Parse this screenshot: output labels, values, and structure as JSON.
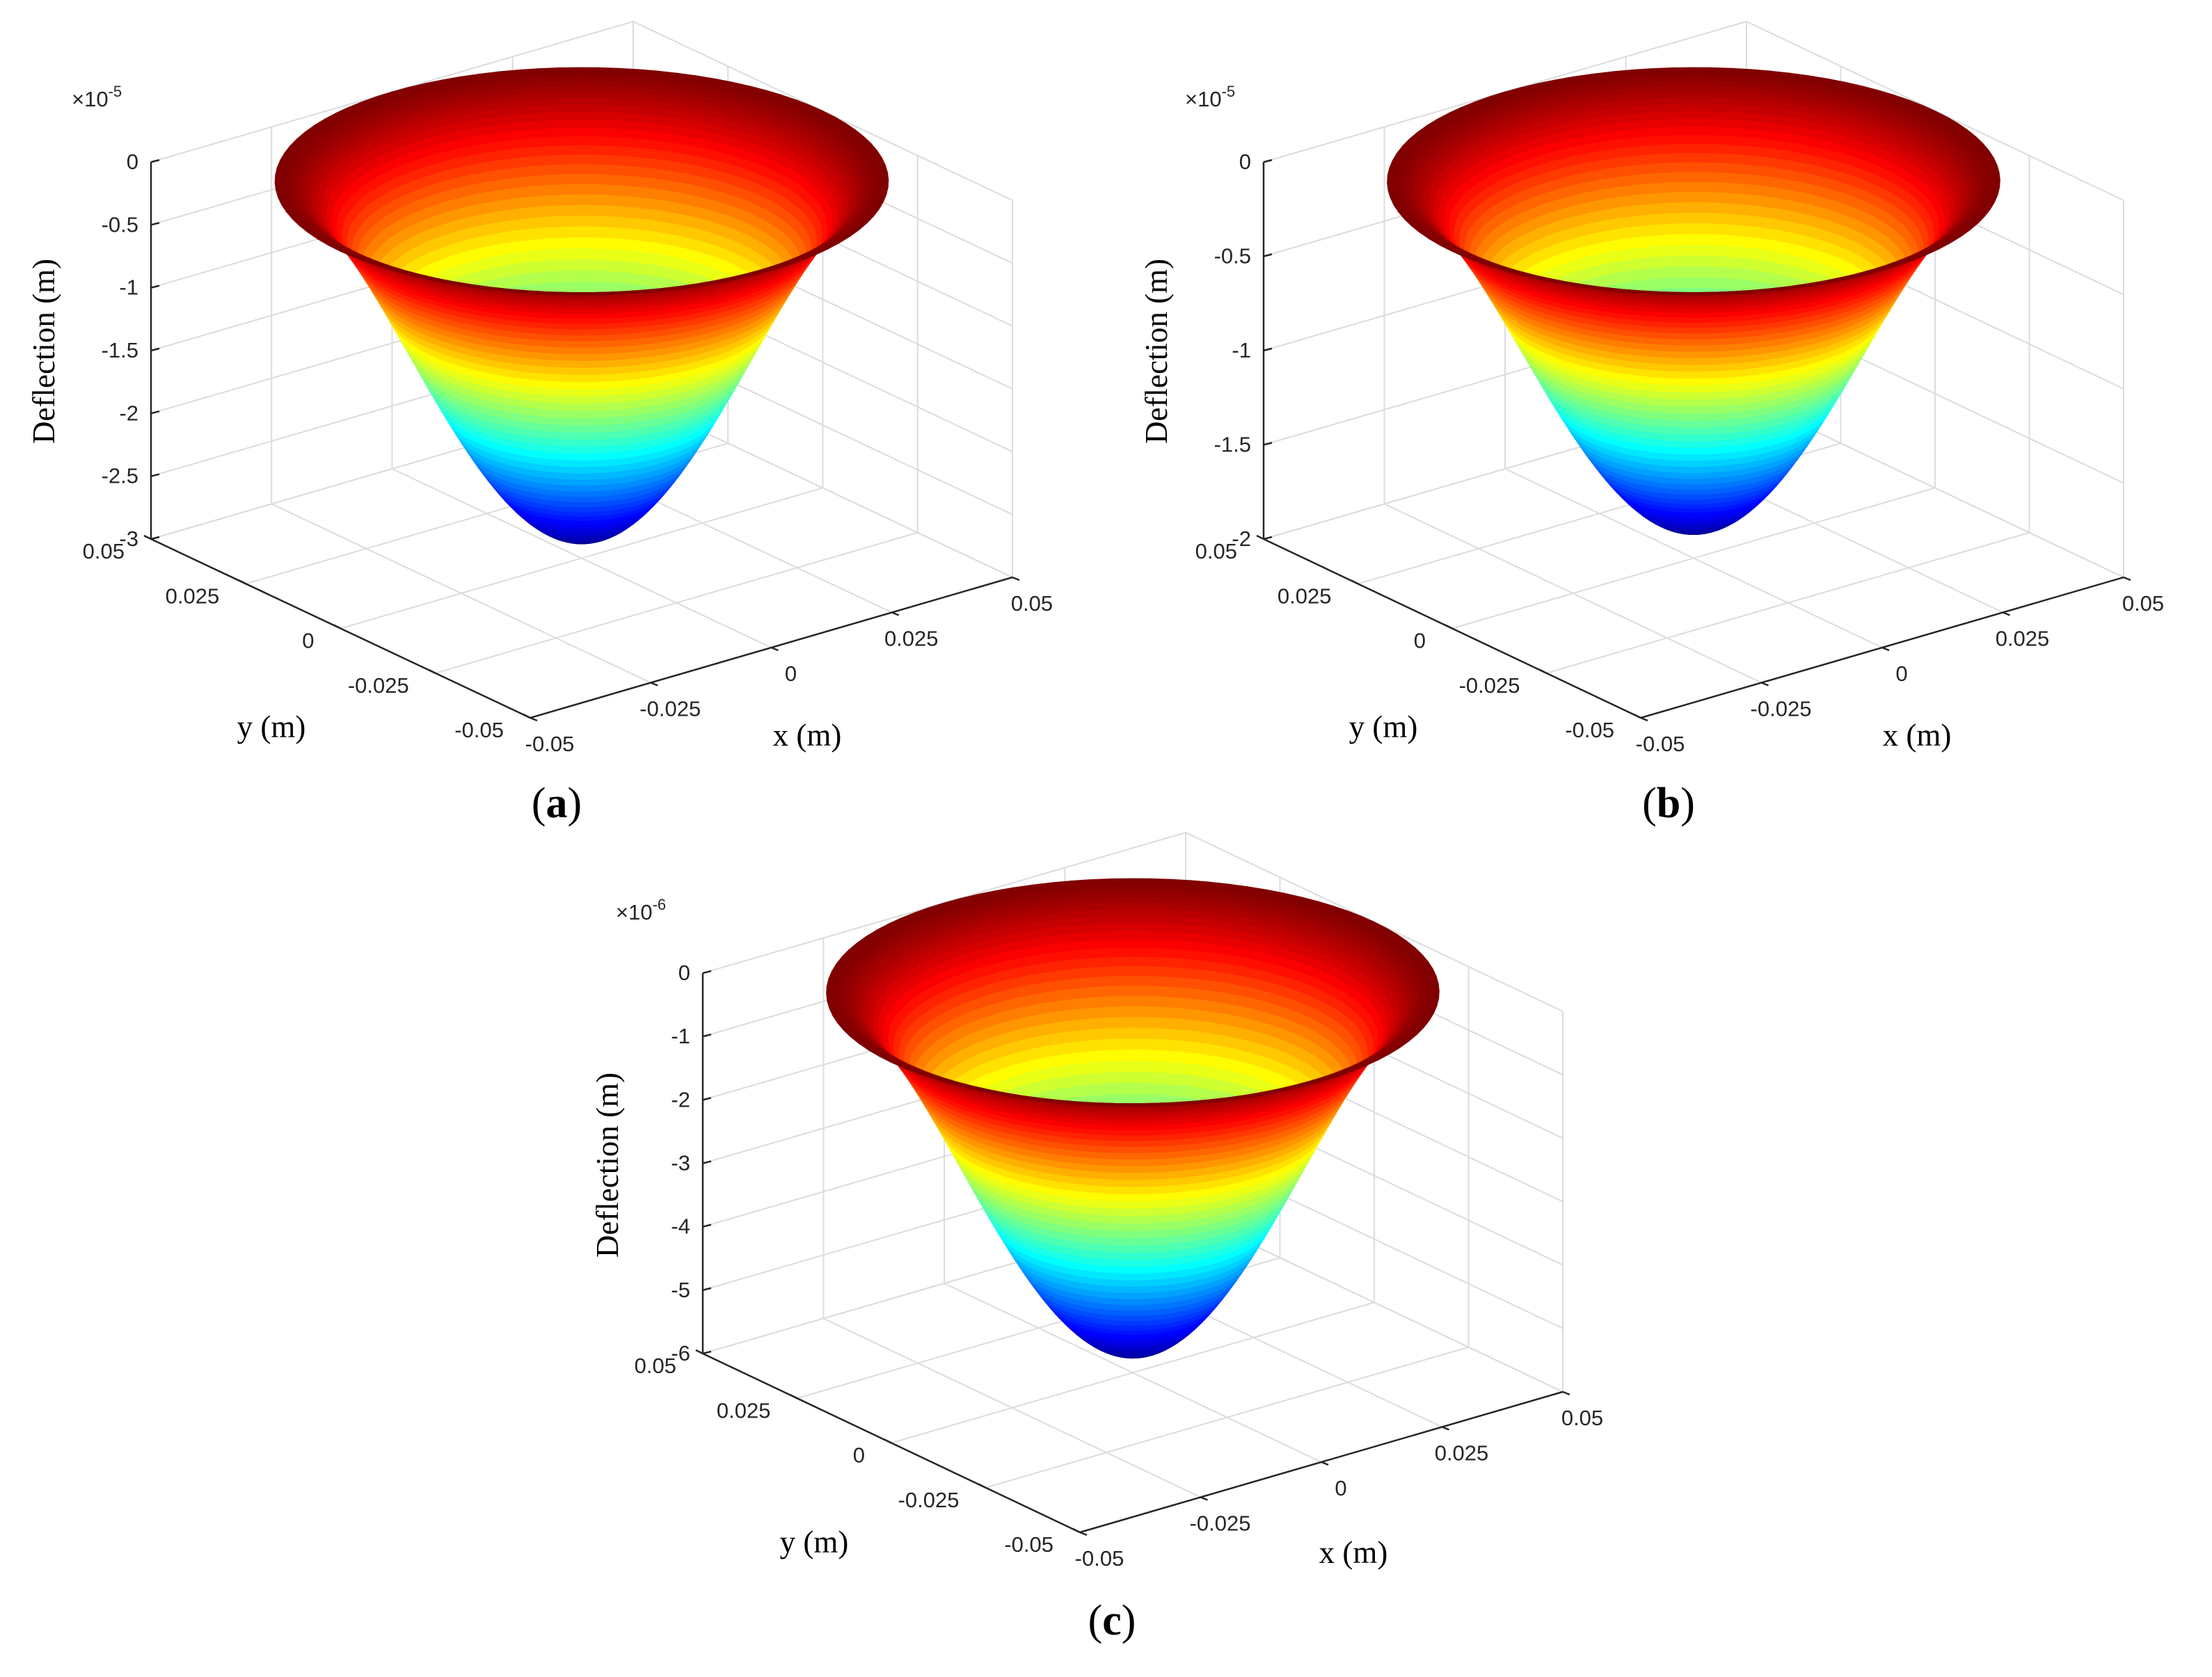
{
  "chart_data": [
    {
      "panel_label": "a",
      "type": "surface3d",
      "surface": "axisymmetric plate deflection w(r) = w_min * (1 - (r/R)^2)^2",
      "colormap": "jet",
      "xlabel": "x (m)",
      "ylabel": "y (m)",
      "zlabel": "Deflection (m)",
      "exponent_label": "×10",
      "exponent_power": "-5",
      "x_ticks": [
        "-0.05",
        "-0.025",
        "0",
        "0.025",
        "0.05"
      ],
      "y_ticks": [
        "-0.05",
        "-0.025",
        "0",
        "0.025",
        "0.05"
      ],
      "z_ticks": [
        "0",
        "-0.5",
        "-1",
        "-1.5",
        "-2",
        "-2.5",
        "-3"
      ],
      "xlim": [
        -0.05,
        0.05
      ],
      "ylim": [
        -0.05,
        0.05
      ],
      "zlim": [
        -3,
        0
      ],
      "radius": 0.05,
      "min_deflection": -2.85,
      "grid": true
    },
    {
      "panel_label": "b",
      "type": "surface3d",
      "surface": "axisymmetric plate deflection w(r) = w_min * (1 - (r/R)^2)^2",
      "colormap": "jet",
      "xlabel": "x (m)",
      "ylabel": "y (m)",
      "zlabel": "Deflection (m)",
      "exponent_label": "×10",
      "exponent_power": "-5",
      "x_ticks": [
        "-0.05",
        "-0.025",
        "0",
        "0.025",
        "0.05"
      ],
      "y_ticks": [
        "-0.05",
        "-0.025",
        "0",
        "0.025",
        "0.05"
      ],
      "z_ticks": [
        "0",
        "-0.5",
        "-1",
        "-1.5",
        "-2"
      ],
      "xlim": [
        -0.05,
        0.05
      ],
      "ylim": [
        -0.05,
        0.05
      ],
      "zlim": [
        -2,
        0
      ],
      "radius": 0.05,
      "min_deflection": -1.85,
      "grid": true
    },
    {
      "panel_label": "c",
      "type": "surface3d",
      "surface": "axisymmetric plate deflection w(r) = w_min * (1 - (r/R)^2)^2",
      "colormap": "jet",
      "xlabel": "x (m)",
      "ylabel": "y (m)",
      "zlabel": "Deflection (m)",
      "exponent_label": "×10",
      "exponent_power": "-6",
      "x_ticks": [
        "-0.05",
        "-0.025",
        "0",
        "0.025",
        "0.05"
      ],
      "y_ticks": [
        "-0.05",
        "-0.025",
        "0",
        "0.025",
        "0.05"
      ],
      "z_ticks": [
        "0",
        "-1",
        "-2",
        "-3",
        "-4",
        "-5",
        "-6"
      ],
      "xlim": [
        -0.05,
        0.05
      ],
      "ylim": [
        -0.05,
        0.05
      ],
      "zlim": [
        -6,
        0
      ],
      "radius": 0.05,
      "min_deflection": -5.7,
      "grid": true
    }
  ]
}
